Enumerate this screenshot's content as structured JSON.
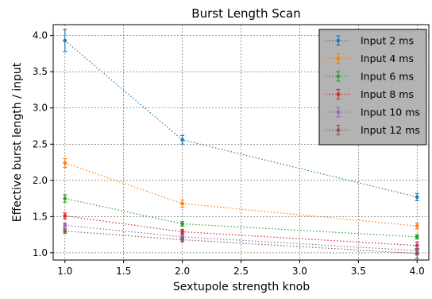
{
  "chart_data": {
    "type": "line",
    "title": "Burst Length Scan",
    "xlabel": "Sextupole strength knob",
    "ylabel": "Effective burst length / input",
    "xlim": [
      0.9,
      4.1
    ],
    "ylim": [
      0.9,
      4.15
    ],
    "xticks": [
      "1.0",
      "1.5",
      "2.0",
      "2.5",
      "3.0",
      "3.5",
      "4.0"
    ],
    "yticks": [
      "1.0",
      "1.5",
      "2.0",
      "2.5",
      "3.0",
      "3.5",
      "4.0"
    ],
    "grid": true,
    "grid_style": "dotted",
    "legend_placement": "top-right",
    "x": [
      1.0,
      2.0,
      4.0
    ],
    "series": [
      {
        "name": "Input 2 ms",
        "color": "#1f77b4",
        "values": [
          3.93,
          2.56,
          1.77
        ],
        "errors": [
          0.15,
          0.06,
          0.05
        ]
      },
      {
        "name": "Input 4 ms",
        "color": "#ff7f0e",
        "values": [
          2.24,
          1.68,
          1.37
        ],
        "errors": [
          0.06,
          0.05,
          0.04
        ]
      },
      {
        "name": "Input 6 ms",
        "color": "#2ca02c",
        "values": [
          1.75,
          1.4,
          1.22
        ],
        "errors": [
          0.05,
          0.03,
          0.03
        ]
      },
      {
        "name": "Input 8 ms",
        "color": "#d62728",
        "values": [
          1.51,
          1.29,
          1.1
        ],
        "errors": [
          0.04,
          0.03,
          0.05
        ]
      },
      {
        "name": "Input 10 ms",
        "color": "#9467bd",
        "values": [
          1.38,
          1.22,
          1.03
        ],
        "errors": [
          0.03,
          0.03,
          0.06
        ]
      },
      {
        "name": "Input 12 ms",
        "color": "#8c564b",
        "values": [
          1.3,
          1.18,
          0.99
        ],
        "errors": [
          0.03,
          0.03,
          0.07
        ]
      }
    ]
  }
}
